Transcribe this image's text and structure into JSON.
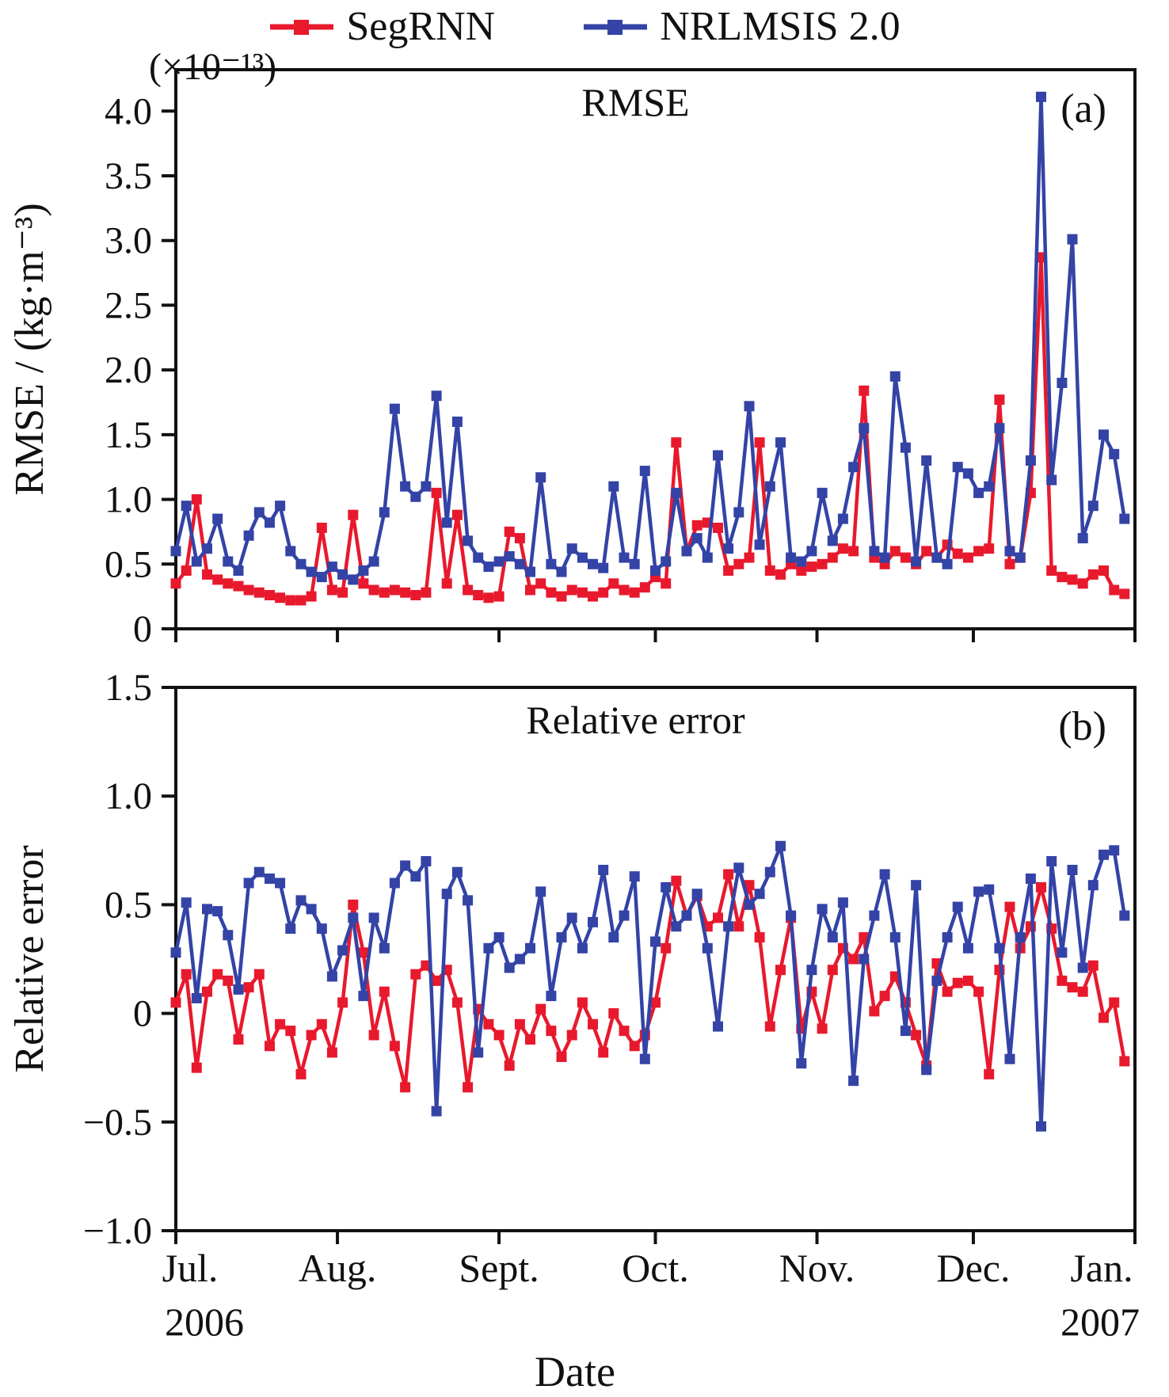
{
  "legend": {
    "items": [
      {
        "id": "segrnn",
        "label": "SegRNN",
        "color": "#e8192d"
      },
      {
        "id": "nrlmsis",
        "label": "NRLMSIS 2.0",
        "color": "#3343a6"
      }
    ]
  },
  "xlabel": "Date",
  "x_axis": {
    "month_labels": [
      "Jul.",
      "Aug.",
      "Sept.",
      "Oct.",
      "Nov.",
      "Dec.",
      "Jan."
    ],
    "month_days": [
      0,
      31,
      62,
      92,
      123,
      153,
      184
    ],
    "year_start": "2006",
    "year_end": "2007"
  },
  "x_days": [
    0,
    2,
    4,
    6,
    8,
    10,
    12,
    14,
    16,
    18,
    20,
    22,
    24,
    26,
    28,
    30,
    32,
    34,
    36,
    38,
    40,
    42,
    44,
    46,
    48,
    50,
    52,
    54,
    56,
    58,
    60,
    62,
    64,
    66,
    68,
    70,
    72,
    74,
    76,
    78,
    80,
    82,
    84,
    86,
    88,
    90,
    92,
    94,
    96,
    98,
    100,
    102,
    104,
    106,
    108,
    110,
    112,
    114,
    116,
    118,
    120,
    122,
    124,
    126,
    128,
    130,
    132,
    134,
    136,
    138,
    140,
    142,
    144,
    146,
    148,
    150,
    152,
    154,
    156,
    158,
    160,
    162,
    164,
    166,
    168,
    170,
    172,
    174,
    176,
    178,
    180,
    182
  ],
  "chart_data": [
    {
      "type": "line",
      "panel": "a",
      "title": "RMSE",
      "corner_label": "(a)",
      "ylabel": "RMSE / (kg·m⁻³)",
      "scale_note": "(×10⁻¹³)",
      "xlabel": "",
      "ylim": [
        0,
        4.32
      ],
      "grid": false,
      "legend_position": "top",
      "yticks": [
        {
          "v": 0,
          "label": "0"
        },
        {
          "v": 0.5,
          "label": "0.5"
        },
        {
          "v": 1.0,
          "label": "1.0"
        },
        {
          "v": 1.5,
          "label": "1.5"
        },
        {
          "v": 2.0,
          "label": "2.0"
        },
        {
          "v": 2.5,
          "label": "2.5"
        },
        {
          "v": 3.0,
          "label": "3.0"
        },
        {
          "v": 3.5,
          "label": "3.5"
        },
        {
          "v": 4.0,
          "label": "4.0"
        }
      ],
      "series": [
        {
          "id": "segrnn",
          "name": "SegRNN",
          "color": "#e8192d",
          "values": [
            0.35,
            0.45,
            1.0,
            0.42,
            0.38,
            0.35,
            0.33,
            0.3,
            0.28,
            0.26,
            0.24,
            0.22,
            0.22,
            0.25,
            0.78,
            0.3,
            0.28,
            0.88,
            0.35,
            0.3,
            0.28,
            0.3,
            0.28,
            0.26,
            0.28,
            1.05,
            0.35,
            0.88,
            0.3,
            0.26,
            0.24,
            0.25,
            0.75,
            0.7,
            0.3,
            0.35,
            0.28,
            0.25,
            0.3,
            0.28,
            0.25,
            0.28,
            0.35,
            0.3,
            0.28,
            0.32,
            0.4,
            0.35,
            1.44,
            0.6,
            0.8,
            0.82,
            0.78,
            0.45,
            0.5,
            0.55,
            1.44,
            0.45,
            0.42,
            0.5,
            0.45,
            0.48,
            0.5,
            0.55,
            0.62,
            0.6,
            1.84,
            0.55,
            0.5,
            0.6,
            0.55,
            0.5,
            0.6,
            0.55,
            0.65,
            0.58,
            0.55,
            0.6,
            0.62,
            1.77,
            0.5,
            0.55,
            1.05,
            2.87,
            0.45,
            0.4,
            0.38,
            0.35,
            0.42,
            0.45,
            0.3,
            0.27
          ]
        },
        {
          "id": "nrlmsis",
          "name": "NRLMSIS 2.0",
          "color": "#3343a6",
          "values": [
            0.6,
            0.95,
            0.52,
            0.62,
            0.85,
            0.52,
            0.45,
            0.72,
            0.9,
            0.82,
            0.95,
            0.6,
            0.5,
            0.44,
            0.4,
            0.48,
            0.42,
            0.38,
            0.45,
            0.52,
            0.9,
            1.7,
            1.1,
            1.02,
            1.1,
            1.8,
            0.82,
            1.6,
            0.68,
            0.55,
            0.48,
            0.52,
            0.56,
            0.5,
            0.44,
            1.17,
            0.5,
            0.44,
            0.62,
            0.55,
            0.5,
            0.47,
            1.1,
            0.55,
            0.5,
            1.22,
            0.45,
            0.52,
            1.05,
            0.6,
            0.7,
            0.55,
            1.34,
            0.62,
            0.9,
            1.72,
            0.65,
            1.1,
            1.44,
            0.55,
            0.52,
            0.6,
            1.05,
            0.68,
            0.85,
            1.25,
            1.55,
            0.6,
            0.55,
            1.95,
            1.4,
            0.52,
            1.3,
            0.55,
            0.5,
            1.25,
            1.2,
            1.05,
            1.1,
            1.55,
            0.6,
            0.55,
            1.3,
            4.11,
            1.15,
            1.9,
            3.01,
            0.7,
            0.95,
            1.5,
            1.35,
            0.85
          ]
        }
      ]
    },
    {
      "type": "line",
      "panel": "b",
      "title": "Relative error",
      "corner_label": "(b)",
      "ylabel": "Relative error",
      "xlabel": "Date",
      "ylim": [
        -1.0,
        1.5
      ],
      "grid": false,
      "legend_position": "top",
      "yticks": [
        {
          "v": -1.0,
          "label": "−1.0"
        },
        {
          "v": -0.5,
          "label": "−0.5"
        },
        {
          "v": 0,
          "label": "0"
        },
        {
          "v": 0.5,
          "label": "0.5"
        },
        {
          "v": 1.0,
          "label": "1.0"
        },
        {
          "v": 1.5,
          "label": "1.5"
        }
      ],
      "series": [
        {
          "id": "segrnn",
          "name": "SegRNN",
          "color": "#e8192d",
          "values": [
            0.05,
            0.18,
            -0.25,
            0.1,
            0.18,
            0.15,
            -0.12,
            0.12,
            0.18,
            -0.15,
            -0.05,
            -0.08,
            -0.28,
            -0.1,
            -0.05,
            -0.18,
            0.05,
            0.5,
            0.28,
            -0.1,
            0.1,
            -0.15,
            -0.34,
            0.18,
            0.22,
            0.15,
            0.2,
            0.05,
            -0.34,
            0.02,
            -0.05,
            -0.1,
            -0.24,
            -0.05,
            -0.12,
            0.02,
            -0.08,
            -0.2,
            -0.1,
            0.05,
            -0.05,
            -0.18,
            0.0,
            -0.08,
            -0.15,
            -0.1,
            0.05,
            0.3,
            0.61,
            0.45,
            0.54,
            0.4,
            0.44,
            0.64,
            0.4,
            0.59,
            0.35,
            -0.06,
            0.2,
            0.44,
            -0.07,
            0.1,
            -0.07,
            0.2,
            0.3,
            0.25,
            0.35,
            0.01,
            0.08,
            0.17,
            0.05,
            -0.1,
            -0.24,
            0.23,
            0.1,
            0.14,
            0.15,
            0.1,
            -0.28,
            0.2,
            0.49,
            0.3,
            0.4,
            0.58,
            0.39,
            0.15,
            0.12,
            0.1,
            0.22,
            -0.02,
            0.05,
            -0.22
          ]
        },
        {
          "id": "nrlmsis",
          "name": "NRLMSIS 2.0",
          "color": "#3343a6",
          "values": [
            0.28,
            0.51,
            0.07,
            0.48,
            0.47,
            0.36,
            0.11,
            0.6,
            0.65,
            0.62,
            0.6,
            0.39,
            0.52,
            0.48,
            0.39,
            0.17,
            0.29,
            0.44,
            0.08,
            0.44,
            0.3,
            0.6,
            0.68,
            0.63,
            0.7,
            -0.45,
            0.55,
            0.65,
            0.52,
            -0.18,
            0.3,
            0.35,
            0.21,
            0.25,
            0.3,
            0.56,
            0.08,
            0.35,
            0.44,
            0.3,
            0.42,
            0.66,
            0.35,
            0.45,
            0.63,
            -0.21,
            0.33,
            0.58,
            0.4,
            0.45,
            0.55,
            0.3,
            -0.06,
            0.4,
            0.67,
            0.5,
            0.55,
            0.65,
            0.77,
            0.45,
            -0.23,
            0.2,
            0.48,
            0.35,
            0.51,
            -0.31,
            0.25,
            0.45,
            0.64,
            0.35,
            -0.08,
            0.59,
            -0.26,
            0.15,
            0.35,
            0.49,
            0.3,
            0.56,
            0.57,
            0.3,
            -0.21,
            0.35,
            0.62,
            -0.52,
            0.7,
            0.28,
            0.66,
            0.21,
            0.59,
            0.73,
            0.75,
            0.45
          ]
        }
      ]
    }
  ]
}
